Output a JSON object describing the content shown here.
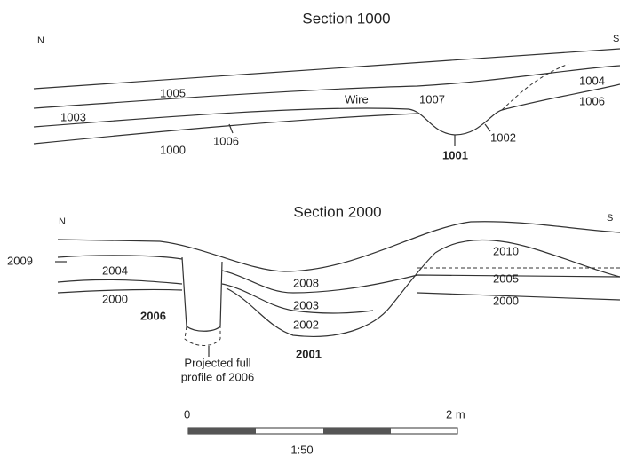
{
  "sections": [
    {
      "title": "Section 1000",
      "north": "N",
      "south": "S",
      "labels": [
        "1005",
        "1003",
        "Wire",
        "1007",
        "1004",
        "1006",
        "1000",
        "1006",
        "1002",
        "1001"
      ]
    },
    {
      "title": "Section 2000",
      "north": "N",
      "south": "S",
      "labels": [
        "2009",
        "2004",
        "2000",
        "2006",
        "2008",
        "2003",
        "2002",
        "2001",
        "2010",
        "2005",
        "2000"
      ],
      "note": [
        "Projected full",
        "profile of 2006"
      ]
    }
  ],
  "scale": {
    "start": "0",
    "end": "2 m",
    "ratio": "1:50"
  }
}
